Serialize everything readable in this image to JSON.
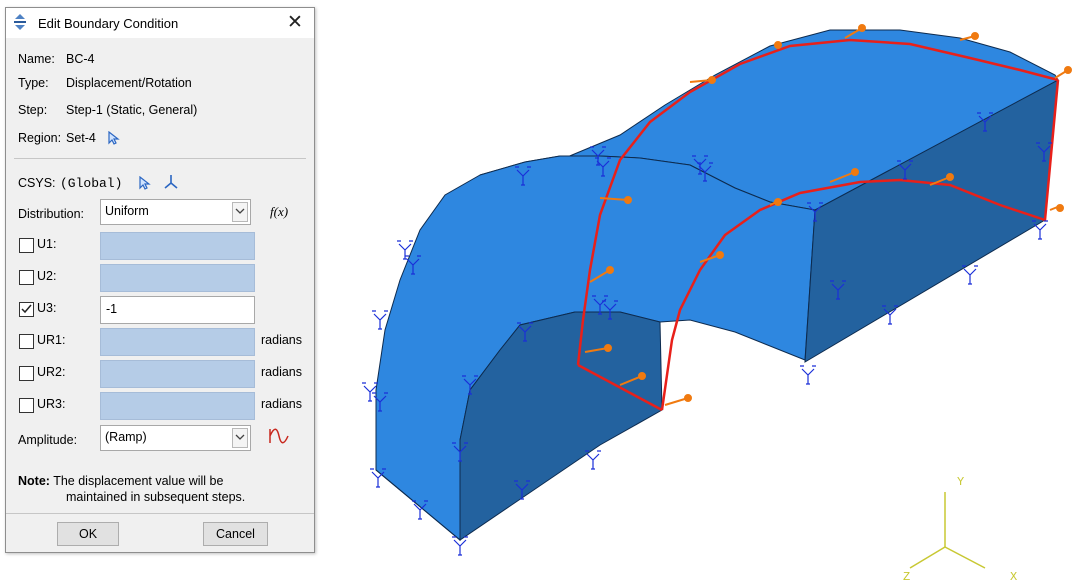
{
  "dialog": {
    "title": "Edit Boundary Condition",
    "close_glyph": "✕",
    "name_label": "Name:",
    "name_value": "BC-4",
    "type_label": "Type:",
    "type_value": "Displacement/Rotation",
    "step_label": "Step:",
    "step_value": "Step-1 (Static, General)",
    "region_label": "Region:",
    "region_value": "Set-4",
    "csys_label": "CSYS:",
    "csys_value": "(Global)",
    "distribution_label": "Distribution:",
    "distribution_value": "Uniform",
    "fx_label": "f(x)",
    "dofs": [
      {
        "label": "U1:",
        "checked": false,
        "value": "",
        "unit": ""
      },
      {
        "label": "U2:",
        "checked": false,
        "value": "",
        "unit": ""
      },
      {
        "label": "U3:",
        "checked": true,
        "value": "-1",
        "unit": ""
      },
      {
        "label": "UR1:",
        "checked": false,
        "value": "",
        "unit": "radians"
      },
      {
        "label": "UR2:",
        "checked": false,
        "value": "",
        "unit": "radians"
      },
      {
        "label": "UR3:",
        "checked": false,
        "value": "",
        "unit": "radians"
      }
    ],
    "amplitude_label": "Amplitude:",
    "amplitude_value": "(Ramp)",
    "note_label": "Note:",
    "note_line1": "The displacement value will be",
    "note_line2": "maintained in subsequent steps.",
    "ok_label": "OK",
    "cancel_label": "Cancel"
  },
  "triad": {
    "y": "Y",
    "z": "Z",
    "x": "X"
  },
  "colors": {
    "part_face": "#2e87e0",
    "part_side": "#23629f",
    "region_edge": "#e8201a",
    "load_arrow": "#f07a10",
    "bc_symbol": "#1a2fd8",
    "triad": "#c8c832"
  },
  "icons": [
    "app-icon",
    "close-icon",
    "select-cursor-icon",
    "csys-axes-icon",
    "dropdown-arrow-icon",
    "amplitude-curve-icon"
  ]
}
